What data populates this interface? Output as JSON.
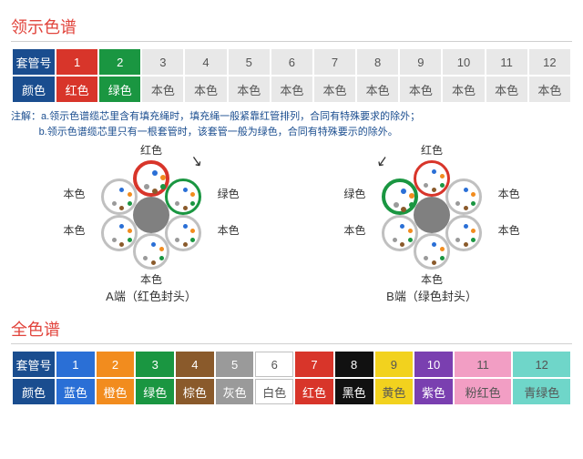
{
  "top": {
    "title": "领示色谱",
    "row_labels": [
      "套管号",
      "颜色"
    ],
    "header_bg": "#1a4d8f",
    "header_fg": "#ffffff",
    "cells": [
      {
        "num": "1",
        "name": "红色",
        "bg": "#d8352a",
        "fg": "#ffffff",
        "numfg": "#ffffff"
      },
      {
        "num": "2",
        "name": "绿色",
        "bg": "#1a9641",
        "fg": "#ffffff",
        "numfg": "#ffffff"
      },
      {
        "num": "3",
        "name": "本色",
        "bg": "#e8e8e8",
        "fg": "#555555",
        "numfg": "#555555"
      },
      {
        "num": "4",
        "name": "本色",
        "bg": "#e8e8e8",
        "fg": "#555555",
        "numfg": "#555555"
      },
      {
        "num": "5",
        "name": "本色",
        "bg": "#e8e8e8",
        "fg": "#555555",
        "numfg": "#555555"
      },
      {
        "num": "6",
        "name": "本色",
        "bg": "#e8e8e8",
        "fg": "#555555",
        "numfg": "#555555"
      },
      {
        "num": "7",
        "name": "本色",
        "bg": "#e8e8e8",
        "fg": "#555555",
        "numfg": "#555555"
      },
      {
        "num": "8",
        "name": "本色",
        "bg": "#e8e8e8",
        "fg": "#555555",
        "numfg": "#555555"
      },
      {
        "num": "9",
        "name": "本色",
        "bg": "#e8e8e8",
        "fg": "#555555",
        "numfg": "#555555"
      },
      {
        "num": "10",
        "name": "本色",
        "bg": "#e8e8e8",
        "fg": "#555555",
        "numfg": "#555555"
      },
      {
        "num": "11",
        "name": "本色",
        "bg": "#e8e8e8",
        "fg": "#555555",
        "numfg": "#555555"
      },
      {
        "num": "12",
        "name": "本色",
        "bg": "#e8e8e8",
        "fg": "#555555",
        "numfg": "#555555"
      }
    ],
    "note_prefix": "注解：",
    "note_a": "a.领示色谱缆芯里含有填充绳时，填充绳一般紧靠红管排列，合同有特殊要求的除外；",
    "note_b": "b.领示色谱缆芯里只有一根套管时，该套管一般为绿色，合同有特殊要示的除外。"
  },
  "diagram": {
    "fiber_colors": [
      "#2a6fd6",
      "#f28c1e",
      "#1a9641",
      "#8a5a2b",
      "#9a9a9a",
      "#ffffff",
      "#d8352a",
      "#111111",
      "#f2d21e",
      "#7a3fb0",
      "#f29ec4",
      "#6fd6c9"
    ],
    "tube_natural": "#c0c0c0",
    "tube_red": "#d8352a",
    "tube_green": "#1a9641",
    "core_color": "#808080",
    "tube_labels": [
      "红色",
      "绿色",
      "本色",
      "本色",
      "本色",
      "本色"
    ],
    "a": {
      "caption": "A端（红色封头）",
      "hi_index": 0,
      "hi_color": "#d8352a"
    },
    "b": {
      "caption": "B端（绿色封头）",
      "hi_index": 5,
      "hi_color": "#1a9641"
    }
  },
  "bottom": {
    "title": "全色谱",
    "row_labels": [
      "套管号",
      "颜色"
    ],
    "header_bg": "#1a4d8f",
    "header_fg": "#ffffff",
    "cells": [
      {
        "num": "1",
        "name": "蓝色",
        "bg": "#2a6fd6",
        "fg": "#ffffff"
      },
      {
        "num": "2",
        "name": "橙色",
        "bg": "#f28c1e",
        "fg": "#ffffff"
      },
      {
        "num": "3",
        "name": "绿色",
        "bg": "#1a9641",
        "fg": "#ffffff"
      },
      {
        "num": "4",
        "name": "棕色",
        "bg": "#8a5a2b",
        "fg": "#ffffff"
      },
      {
        "num": "5",
        "name": "灰色",
        "bg": "#9a9a9a",
        "fg": "#ffffff"
      },
      {
        "num": "6",
        "name": "白色",
        "bg": "#ffffff",
        "fg": "#555555",
        "border": "#c0c0c0"
      },
      {
        "num": "7",
        "name": "红色",
        "bg": "#d8352a",
        "fg": "#ffffff"
      },
      {
        "num": "8",
        "name": "黑色",
        "bg": "#111111",
        "fg": "#ffffff"
      },
      {
        "num": "9",
        "name": "黄色",
        "bg": "#f2d21e",
        "fg": "#555555"
      },
      {
        "num": "10",
        "name": "紫色",
        "bg": "#7a3fb0",
        "fg": "#ffffff"
      },
      {
        "num": "11",
        "name": "粉红色",
        "bg": "#f29ec4",
        "fg": "#555555"
      },
      {
        "num": "12",
        "name": "青绿色",
        "bg": "#6fd6c9",
        "fg": "#555555"
      }
    ]
  }
}
